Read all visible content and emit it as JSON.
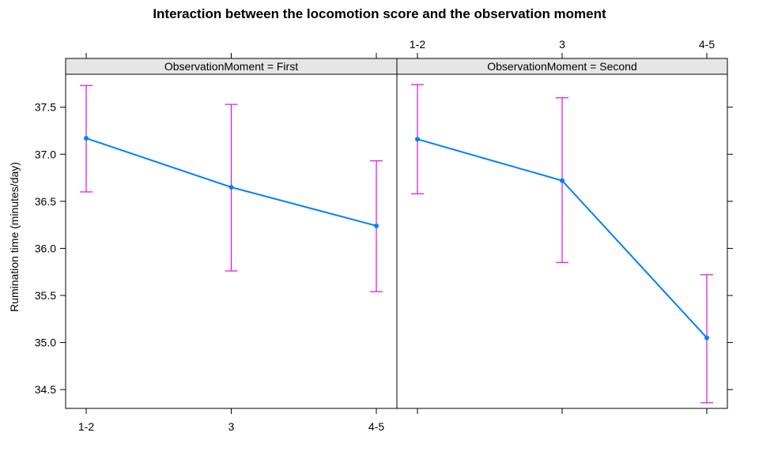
{
  "chart_data": {
    "type": "line",
    "title": "Interaction between the locomotion score and the observation moment",
    "xlabel": "",
    "ylabel": "Rumination time (minutes/day)",
    "categories": [
      "1-2",
      "3",
      "4-5"
    ],
    "ylim": [
      34.3,
      37.85
    ],
    "yticks": [
      "34.5",
      "35.0",
      "35.5",
      "36.0",
      "36.5",
      "37.0",
      "37.5"
    ],
    "grid": false,
    "colors": {
      "line": "#0080ff",
      "errorbar": "#e30ee3",
      "strip": "#e6e6e6",
      "border": "#000000"
    },
    "panels": [
      {
        "strip_label": "ObservationMoment = First",
        "values": [
          37.17,
          36.65,
          36.24
        ],
        "lower": [
          36.6,
          35.76,
          35.54
        ],
        "upper": [
          37.73,
          37.53,
          36.93
        ]
      },
      {
        "strip_label": "ObservationMoment = Second",
        "values": [
          37.16,
          36.72,
          35.05
        ],
        "lower": [
          36.58,
          35.85,
          34.36
        ],
        "upper": [
          37.74,
          37.6,
          35.72
        ]
      }
    ]
  }
}
